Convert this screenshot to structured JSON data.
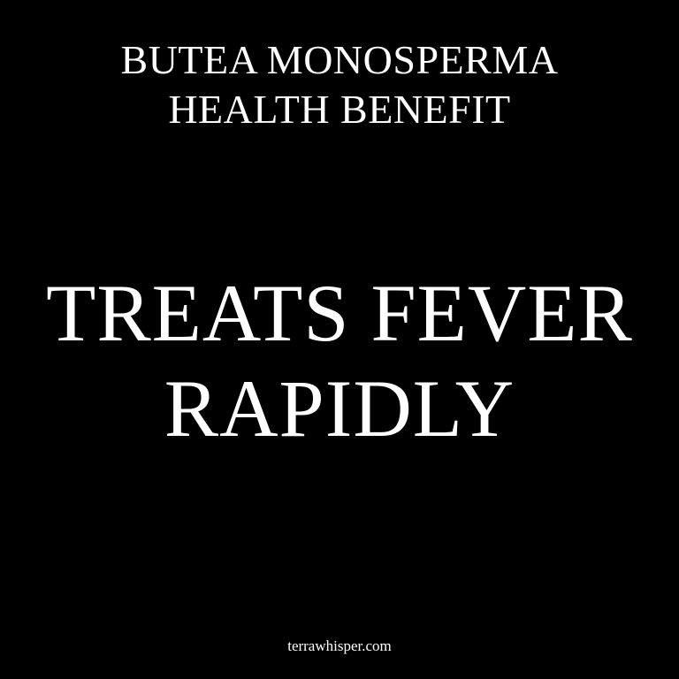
{
  "colors": {
    "background": "#000000",
    "text": "#ffffff"
  },
  "header": {
    "line1": "BUTEA MONOSPERMA",
    "line2": "HEALTH BENEFIT"
  },
  "main": {
    "line1": "TREATS FEVER",
    "line2": "RAPIDLY"
  },
  "footer": {
    "site": "terrawhisper.com"
  }
}
